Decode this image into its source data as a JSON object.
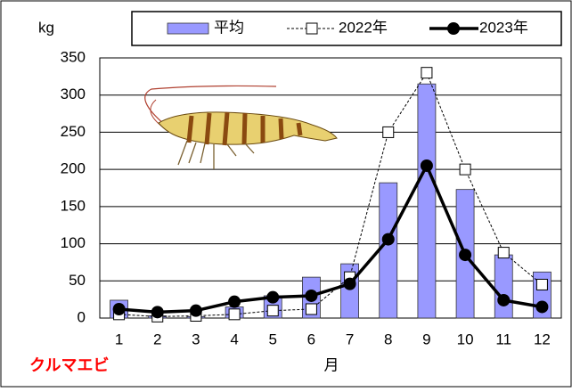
{
  "chart_data": {
    "type": "bar_line",
    "y_label": "kg",
    "x_label": "月",
    "annotation": "クルマエビ",
    "categories": [
      "1",
      "2",
      "3",
      "4",
      "5",
      "6",
      "7",
      "8",
      "9",
      "10",
      "11",
      "12"
    ],
    "series": [
      {
        "name": "平均",
        "kind": "bar",
        "color": "#9999ff",
        "values": [
          24,
          3,
          2,
          15,
          30,
          55,
          73,
          182,
          315,
          173,
          85,
          62
        ]
      },
      {
        "name": "2022年",
        "kind": "line",
        "style": "dashed",
        "marker": "square",
        "color": "#000000",
        "values": [
          5,
          2,
          3,
          5,
          10,
          12,
          55,
          250,
          330,
          200,
          88,
          45
        ]
      },
      {
        "name": "2023年",
        "kind": "line",
        "style": "solid",
        "marker": "circle",
        "color": "#000000",
        "values": [
          12,
          8,
          10,
          22,
          28,
          30,
          46,
          106,
          205,
          85,
          24,
          15
        ]
      }
    ],
    "ylim": [
      0,
      350
    ],
    "yticks": [
      0,
      50,
      100,
      150,
      200,
      250,
      300,
      350
    ],
    "grid": true
  }
}
